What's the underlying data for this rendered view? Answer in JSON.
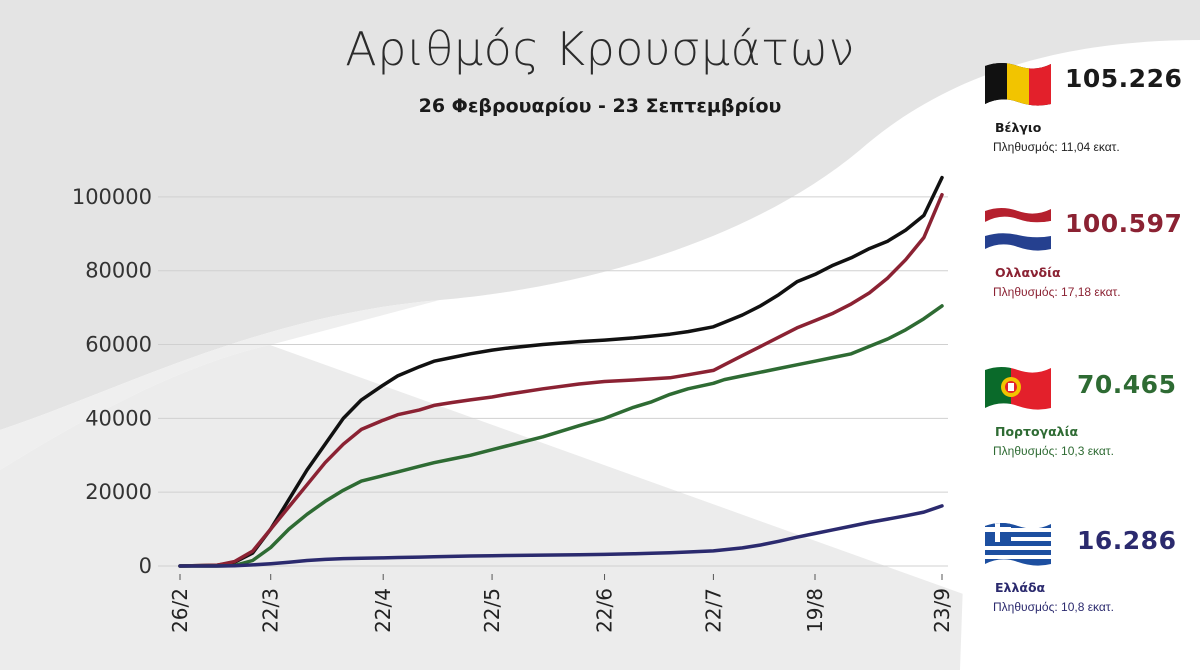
{
  "title": "Αριθμός Κρουσμάτων",
  "subtitle": "26 Φεβρουαρίου - 23 Σεπτεμβρίου",
  "chart_data": {
    "type": "line",
    "title": "Αριθμός Κρουσμάτων",
    "subtitle": "26 Φεβρουαρίου - 23 Σεπτεμβρίου",
    "xlabel": "",
    "ylabel": "",
    "ylim": [
      0,
      110000
    ],
    "yticks": [
      0,
      20000,
      40000,
      60000,
      80000,
      100000
    ],
    "xtick_labels": [
      "26/2",
      "22/3",
      "22/4",
      "22/5",
      "22/6",
      "22/7",
      "19/8",
      "23/9"
    ],
    "grid": "horizontal",
    "x_index_note": "days from 26/2",
    "xticks_day": [
      0,
      25,
      56,
      86,
      117,
      147,
      175,
      210
    ],
    "series": [
      {
        "name": "Βέλγιο",
        "color": "#111111",
        "x": [
          0,
          10,
          15,
          20,
          25,
          30,
          35,
          40,
          45,
          50,
          56,
          60,
          66,
          70,
          75,
          80,
          86,
          90,
          100,
          110,
          117,
          125,
          130,
          135,
          140,
          147,
          150,
          155,
          160,
          165,
          170,
          175,
          180,
          185,
          190,
          195,
          200,
          205,
          210
        ],
        "y": [
          0,
          200,
          1000,
          3500,
          10000,
          18000,
          26000,
          33000,
          40000,
          45000,
          49000,
          51500,
          54000,
          55500,
          56500,
          57500,
          58500,
          59000,
          60000,
          60800,
          61200,
          61800,
          62300,
          62800,
          63500,
          64800,
          66000,
          68000,
          70500,
          73500,
          77000,
          79000,
          81500,
          83500,
          86000,
          88000,
          91000,
          95000,
          105226
        ]
      },
      {
        "name": "Ολλανδία",
        "color": "#8b2233",
        "x": [
          0,
          10,
          15,
          20,
          25,
          30,
          35,
          40,
          45,
          50,
          56,
          60,
          66,
          70,
          75,
          80,
          86,
          90,
          100,
          110,
          117,
          125,
          130,
          135,
          140,
          147,
          150,
          155,
          160,
          165,
          170,
          175,
          180,
          185,
          190,
          195,
          200,
          205,
          210
        ],
        "y": [
          0,
          200,
          1200,
          4000,
          10000,
          16000,
          22000,
          28000,
          33000,
          37000,
          39500,
          41000,
          42300,
          43500,
          44300,
          45000,
          45800,
          46500,
          48000,
          49300,
          50000,
          50400,
          50700,
          51000,
          51800,
          53000,
          54500,
          57000,
          59500,
          62000,
          64500,
          66500,
          68500,
          71000,
          74000,
          78000,
          83000,
          89000,
          100597
        ]
      },
      {
        "name": "Πορτογαλία",
        "color": "#2e6b33",
        "x": [
          0,
          10,
          15,
          20,
          25,
          30,
          35,
          40,
          45,
          50,
          56,
          60,
          66,
          70,
          75,
          80,
          86,
          90,
          100,
          110,
          117,
          125,
          130,
          135,
          140,
          147,
          150,
          155,
          160,
          165,
          170,
          175,
          180,
          185,
          190,
          195,
          200,
          205,
          210
        ],
        "y": [
          0,
          0,
          100,
          1500,
          5000,
          10000,
          14000,
          17500,
          20500,
          23000,
          24500,
          25500,
          27000,
          28000,
          29000,
          30000,
          31500,
          32500,
          35000,
          38000,
          40000,
          43000,
          44500,
          46500,
          48000,
          49500,
          50500,
          51500,
          52500,
          53500,
          54500,
          55500,
          56500,
          57500,
          59500,
          61500,
          64000,
          67000,
          70465
        ]
      },
      {
        "name": "Ελλάδα",
        "color": "#2b2a6e",
        "x": [
          0,
          10,
          15,
          20,
          25,
          30,
          35,
          40,
          45,
          50,
          56,
          60,
          66,
          70,
          75,
          80,
          86,
          90,
          100,
          110,
          117,
          125,
          130,
          135,
          140,
          147,
          150,
          155,
          160,
          165,
          170,
          175,
          180,
          185,
          190,
          195,
          200,
          205,
          210
        ],
        "y": [
          0,
          0,
          50,
          300,
          600,
          1000,
          1500,
          1800,
          2000,
          2100,
          2200,
          2300,
          2400,
          2500,
          2600,
          2700,
          2800,
          2850,
          2950,
          3050,
          3150,
          3300,
          3450,
          3600,
          3800,
          4100,
          4400,
          4900,
          5700,
          6700,
          7800,
          8800,
          9800,
          10800,
          11800,
          12700,
          13600,
          14600,
          16286
        ]
      }
    ]
  },
  "legend": [
    {
      "key": "belgium",
      "value": "105.226",
      "name": "Βέλγιο",
      "population": "Πληθυσμός: 11,04 εκατ.",
      "color": "#1a1a1a",
      "flag": "belgium-flag"
    },
    {
      "key": "netherlands",
      "value": "100.597",
      "name": "Ολλανδία",
      "population": "Πληθυσμός: 17,18 εκατ.",
      "color": "#8b2233",
      "flag": "netherlands-flag"
    },
    {
      "key": "portugal",
      "value": "70.465",
      "name": "Πορτογαλία",
      "population": "Πληθυσμός: 10,3 εκατ.",
      "color": "#2e6b33",
      "flag": "portugal-flag"
    },
    {
      "key": "greece",
      "value": "16.286",
      "name": "Ελλάδα",
      "population": "Πληθυσμός: 10,8 εκατ.",
      "color": "#2b2a6e",
      "flag": "greece-flag"
    }
  ]
}
